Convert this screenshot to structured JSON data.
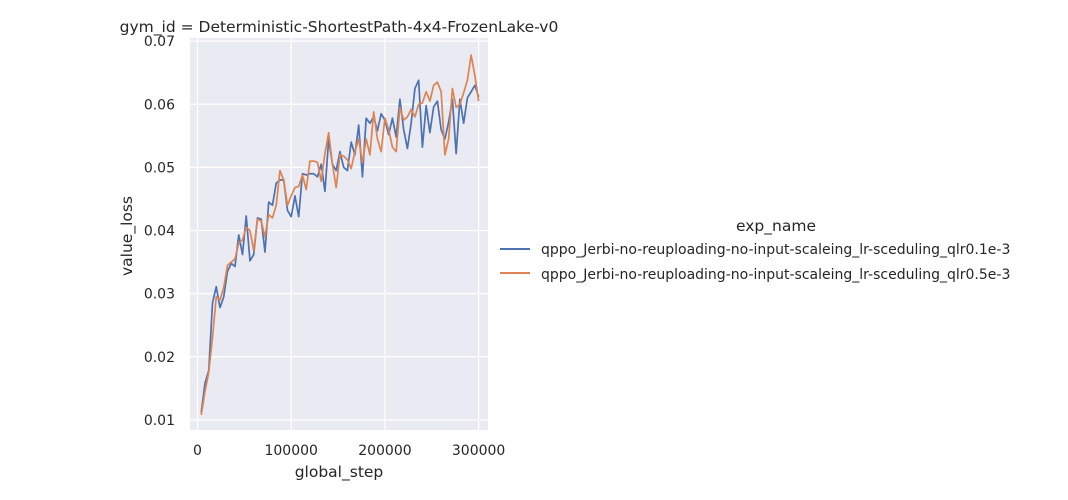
{
  "chart_data": {
    "type": "line",
    "title": "gym_id = Deterministic-ShortestPath-4x4-FrozenLake-v0",
    "xlabel": "global_step",
    "ylabel": "value_loss",
    "xlim": [
      -8000,
      310000
    ],
    "ylim": [
      0.0084,
      0.0705
    ],
    "xticks": [
      0,
      100000,
      200000,
      300000
    ],
    "xtick_labels": [
      "0",
      "100000",
      "200000",
      "300000"
    ],
    "yticks": [
      0.01,
      0.02,
      0.03,
      0.04,
      0.05,
      0.06,
      0.07
    ],
    "ytick_labels": [
      "0.01",
      "0.02",
      "0.03",
      "0.04",
      "0.05",
      "0.06",
      "0.07"
    ],
    "grid": true,
    "legend": {
      "title": "exp_name",
      "placement": "right"
    },
    "series": [
      {
        "name": "qppo_Jerbi-no-reuploading-no-input-scaleing_lr-sceduling_qlr0.1e-3",
        "color": "#4c72b0",
        "x": [
          4000,
          8000,
          12000,
          16000,
          20000,
          24000,
          28000,
          32000,
          36000,
          40000,
          44000,
          48000,
          52000,
          56000,
          60000,
          64000,
          68000,
          72000,
          76000,
          80000,
          84000,
          88000,
          92000,
          96000,
          100000,
          104000,
          108000,
          112000,
          116000,
          120000,
          124000,
          128000,
          132000,
          136000,
          140000,
          144000,
          148000,
          152000,
          156000,
          160000,
          164000,
          168000,
          172000,
          176000,
          180000,
          184000,
          188000,
          192000,
          196000,
          200000,
          204000,
          208000,
          212000,
          216000,
          220000,
          224000,
          228000,
          232000,
          236000,
          240000,
          244000,
          248000,
          252000,
          256000,
          260000,
          264000,
          268000,
          272000,
          276000,
          280000,
          284000,
          288000,
          292000,
          296000,
          300000
        ],
        "y": [
          0.0112,
          0.0158,
          0.0178,
          0.0285,
          0.0311,
          0.0278,
          0.0295,
          0.0335,
          0.0348,
          0.0343,
          0.0393,
          0.0362,
          0.0423,
          0.0352,
          0.0362,
          0.042,
          0.0418,
          0.0366,
          0.0445,
          0.044,
          0.0475,
          0.048,
          0.048,
          0.0432,
          0.0422,
          0.0455,
          0.0422,
          0.049,
          0.0488,
          0.049,
          0.049,
          0.0485,
          0.0505,
          0.0462,
          0.0545,
          0.0505,
          0.0495,
          0.0525,
          0.05,
          0.0495,
          0.054,
          0.052,
          0.0567,
          0.0485,
          0.0578,
          0.057,
          0.058,
          0.0558,
          0.0585,
          0.0575,
          0.0552,
          0.0578,
          0.0548,
          0.0608,
          0.056,
          0.053,
          0.057,
          0.0625,
          0.0638,
          0.0532,
          0.0598,
          0.0555,
          0.0596,
          0.0605,
          0.056,
          0.0545,
          0.0572,
          0.0608,
          0.0522,
          0.0608,
          0.057,
          0.061,
          0.062,
          0.063,
          0.0612
        ]
      },
      {
        "name": "qppo_Jerbi-no-reuploading-no-input-scaleing_lr-sceduling_qlr0.5e-3",
        "color": "#dd8452",
        "x": [
          4000,
          8000,
          12000,
          16000,
          20000,
          24000,
          28000,
          32000,
          36000,
          40000,
          44000,
          48000,
          52000,
          56000,
          60000,
          64000,
          68000,
          72000,
          76000,
          80000,
          84000,
          88000,
          92000,
          96000,
          100000,
          104000,
          108000,
          112000,
          116000,
          120000,
          124000,
          128000,
          132000,
          136000,
          140000,
          144000,
          148000,
          152000,
          156000,
          160000,
          164000,
          168000,
          172000,
          176000,
          180000,
          184000,
          188000,
          192000,
          196000,
          200000,
          204000,
          208000,
          212000,
          216000,
          220000,
          224000,
          228000,
          232000,
          236000,
          240000,
          244000,
          248000,
          252000,
          256000,
          260000,
          264000,
          268000,
          272000,
          276000,
          280000,
          284000,
          288000,
          292000,
          296000,
          300000
        ],
        "y": [
          0.0108,
          0.0145,
          0.0175,
          0.023,
          0.0295,
          0.029,
          0.031,
          0.0345,
          0.035,
          0.0355,
          0.038,
          0.0385,
          0.0405,
          0.04,
          0.0368,
          0.0418,
          0.0415,
          0.039,
          0.0425,
          0.042,
          0.044,
          0.0495,
          0.048,
          0.044,
          0.0455,
          0.0468,
          0.047,
          0.0488,
          0.0465,
          0.051,
          0.051,
          0.0508,
          0.0478,
          0.0522,
          0.0555,
          0.0505,
          0.0468,
          0.052,
          0.0518,
          0.0512,
          0.0498,
          0.0525,
          0.0545,
          0.0508,
          0.0545,
          0.052,
          0.0588,
          0.0545,
          0.0525,
          0.0578,
          0.056,
          0.0532,
          0.0525,
          0.0595,
          0.0575,
          0.058,
          0.0592,
          0.058,
          0.06,
          0.0602,
          0.062,
          0.0605,
          0.063,
          0.0635,
          0.062,
          0.052,
          0.0545,
          0.0625,
          0.0595,
          0.06,
          0.0618,
          0.0638,
          0.0678,
          0.0645,
          0.0605
        ]
      }
    ]
  }
}
